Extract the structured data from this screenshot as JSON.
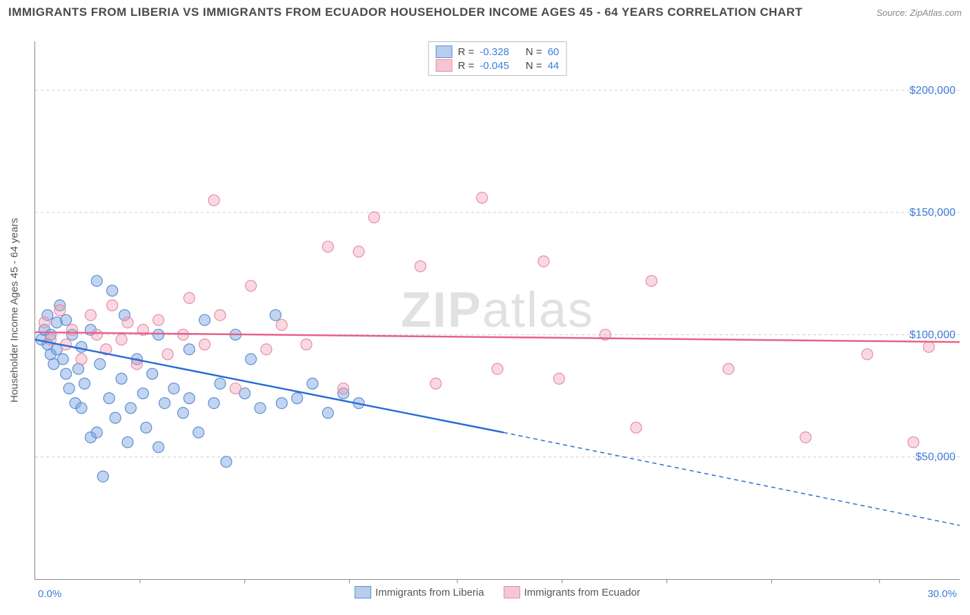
{
  "title": "IMMIGRANTS FROM LIBERIA VS IMMIGRANTS FROM ECUADOR HOUSEHOLDER INCOME AGES 45 - 64 YEARS CORRELATION CHART",
  "source": "Source: ZipAtlas.com",
  "watermark": "ZIPatlas",
  "yaxis_label": "Householder Income Ages 45 - 64 years",
  "chart": {
    "type": "scatter",
    "xlim": [
      0,
      30
    ],
    "ylim": [
      0,
      220000
    ],
    "xtick_labels": {
      "0": "0.0%",
      "30": "30.0%"
    },
    "xticks_minor": [
      3.4,
      6.8,
      10.2,
      13.7,
      17.1,
      20.5,
      23.9,
      27.4
    ],
    "ytick_labels": {
      "50000": "$50,000",
      "100000": "$100,000",
      "150000": "$150,000",
      "200000": "$200,000"
    },
    "grid_color": "#cccccc",
    "background_color": "#ffffff",
    "series": [
      {
        "name": "Immigrants from Liberia",
        "marker_color_fill": "rgba(120,160,220,0.45)",
        "marker_color_stroke": "#5a8fd6",
        "line_color": "#2b6cd4",
        "swatch_fill": "#b8cdeb",
        "swatch_border": "#5a8fd6",
        "R": "-0.328",
        "N": "60",
        "trend": {
          "x1": 0,
          "y1": 98000,
          "x2_solid": 15.2,
          "y2_solid": 60000,
          "x2": 30,
          "y2": 22000
        },
        "marker_radius": 8,
        "points": [
          [
            0.2,
            98000
          ],
          [
            0.3,
            102000
          ],
          [
            0.4,
            96000
          ],
          [
            0.4,
            108000
          ],
          [
            0.5,
            92000
          ],
          [
            0.5,
            100000
          ],
          [
            0.6,
            88000
          ],
          [
            0.7,
            105000
          ],
          [
            0.7,
            94000
          ],
          [
            0.8,
            112000
          ],
          [
            0.9,
            90000
          ],
          [
            1.0,
            84000
          ],
          [
            1.0,
            106000
          ],
          [
            1.1,
            78000
          ],
          [
            1.2,
            100000
          ],
          [
            1.3,
            72000
          ],
          [
            1.4,
            86000
          ],
          [
            1.5,
            70000
          ],
          [
            1.5,
            95000
          ],
          [
            1.6,
            80000
          ],
          [
            1.8,
            58000
          ],
          [
            1.8,
            102000
          ],
          [
            2.0,
            60000
          ],
          [
            2.0,
            122000
          ],
          [
            2.1,
            88000
          ],
          [
            2.2,
            42000
          ],
          [
            2.4,
            74000
          ],
          [
            2.5,
            118000
          ],
          [
            2.6,
            66000
          ],
          [
            2.8,
            82000
          ],
          [
            2.9,
            108000
          ],
          [
            3.0,
            56000
          ],
          [
            3.1,
            70000
          ],
          [
            3.3,
            90000
          ],
          [
            3.5,
            76000
          ],
          [
            3.6,
            62000
          ],
          [
            3.8,
            84000
          ],
          [
            4.0,
            54000
          ],
          [
            4.0,
            100000
          ],
          [
            4.2,
            72000
          ],
          [
            4.5,
            78000
          ],
          [
            4.8,
            68000
          ],
          [
            5.0,
            94000
          ],
          [
            5.0,
            74000
          ],
          [
            5.3,
            60000
          ],
          [
            5.5,
            106000
          ],
          [
            5.8,
            72000
          ],
          [
            6.0,
            80000
          ],
          [
            6.2,
            48000
          ],
          [
            6.5,
            100000
          ],
          [
            6.8,
            76000
          ],
          [
            7.0,
            90000
          ],
          [
            7.3,
            70000
          ],
          [
            7.8,
            108000
          ],
          [
            8.0,
            72000
          ],
          [
            8.5,
            74000
          ],
          [
            9.0,
            80000
          ],
          [
            9.5,
            68000
          ],
          [
            10.0,
            76000
          ],
          [
            10.5,
            72000
          ]
        ]
      },
      {
        "name": "Immigrants from Ecuador",
        "marker_color_fill": "rgba(240,160,180,0.40)",
        "marker_color_stroke": "#e88ba4",
        "line_color": "#e85f8a",
        "swatch_fill": "#f4c6d3",
        "swatch_border": "#e88ba4",
        "R": "-0.045",
        "N": "44",
        "trend": {
          "x1": 0,
          "y1": 101000,
          "x2_solid": 30,
          "y2_solid": 97000,
          "x2": 30,
          "y2": 97000
        },
        "marker_radius": 8,
        "points": [
          [
            0.3,
            105000
          ],
          [
            0.5,
            98000
          ],
          [
            0.8,
            110000
          ],
          [
            1.0,
            96000
          ],
          [
            1.2,
            102000
          ],
          [
            1.5,
            90000
          ],
          [
            1.8,
            108000
          ],
          [
            2.0,
            100000
          ],
          [
            2.3,
            94000
          ],
          [
            2.5,
            112000
          ],
          [
            2.8,
            98000
          ],
          [
            3.0,
            105000
          ],
          [
            3.3,
            88000
          ],
          [
            3.5,
            102000
          ],
          [
            4.0,
            106000
          ],
          [
            4.3,
            92000
          ],
          [
            4.8,
            100000
          ],
          [
            5.0,
            115000
          ],
          [
            5.5,
            96000
          ],
          [
            5.8,
            155000
          ],
          [
            6.0,
            108000
          ],
          [
            6.5,
            78000
          ],
          [
            7.0,
            120000
          ],
          [
            7.5,
            94000
          ],
          [
            8.0,
            104000
          ],
          [
            8.8,
            96000
          ],
          [
            9.5,
            136000
          ],
          [
            10.0,
            78000
          ],
          [
            10.5,
            134000
          ],
          [
            11.0,
            148000
          ],
          [
            12.5,
            128000
          ],
          [
            13.0,
            80000
          ],
          [
            14.5,
            156000
          ],
          [
            15.0,
            86000
          ],
          [
            16.5,
            130000
          ],
          [
            17.0,
            82000
          ],
          [
            18.5,
            100000
          ],
          [
            19.5,
            62000
          ],
          [
            20.0,
            122000
          ],
          [
            22.5,
            86000
          ],
          [
            25.0,
            58000
          ],
          [
            27.0,
            92000
          ],
          [
            28.5,
            56000
          ],
          [
            29.0,
            95000
          ]
        ]
      }
    ]
  },
  "legend_top_labels": {
    "R": "R =",
    "N": "N ="
  }
}
